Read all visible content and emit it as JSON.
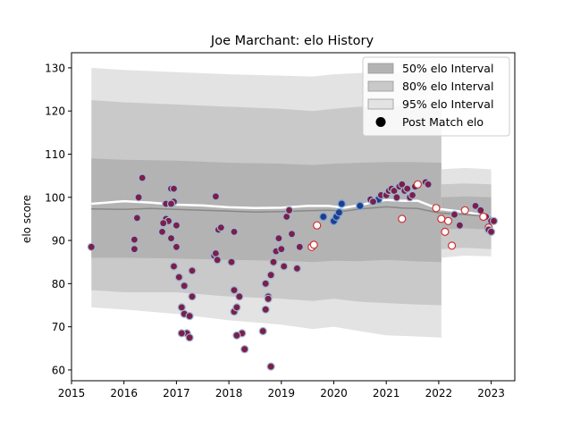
{
  "chart_data": {
    "type": "scatter",
    "title": "Joe Marchant: elo History",
    "xlabel": "",
    "ylabel": "elo score",
    "xlim": [
      2015.0,
      2023.45
    ],
    "ylim": [
      57.5,
      133.5
    ],
    "xticks": [
      2015,
      2016,
      2017,
      2018,
      2019,
      2020,
      2021,
      2022,
      2023
    ],
    "yticks": [
      60,
      70,
      80,
      90,
      100,
      110,
      120,
      130
    ],
    "legend": {
      "placement": "top-right",
      "entries": [
        {
          "label": "50% elo Interval",
          "color": "#b3b3b3"
        },
        {
          "label": "80% elo Interval",
          "color": "#c9c9c9"
        },
        {
          "label": "95% elo Interval",
          "color": "#e3e3e3"
        },
        {
          "label": "Post Match elo",
          "color": "#000000"
        }
      ]
    },
    "colors": {
      "band50": "#b3b3b3",
      "band80": "#c9c9c9",
      "band95": "#e3e3e3",
      "mean_line": "#888888",
      "median_line": "#ffffff",
      "point_red": "#7a2048",
      "point_red_edge": "#9fb6d6",
      "point_navy": "#1f3d8a",
      "point_navy_edge": "#6fa0d8",
      "point_open": "#ffffff",
      "point_open_edge": "#d03030"
    },
    "intervals": {
      "x": [
        2015.38,
        2016.0,
        2017.0,
        2018.0,
        2019.0,
        2019.6,
        2020.0,
        2020.5,
        2021.0,
        2021.5,
        2022.05
      ],
      "p95_hi": [
        130,
        129.5,
        129,
        128.5,
        128.2,
        128,
        128.5,
        128.8,
        129,
        129,
        129
      ],
      "p95_lo": [
        74.5,
        74,
        73,
        71.5,
        70.5,
        69.5,
        70,
        69,
        68,
        67.8,
        67.5
      ],
      "p80_hi": [
        122.5,
        122,
        121.5,
        121,
        120.5,
        120,
        120.5,
        121,
        121,
        121,
        121
      ],
      "p80_lo": [
        78.5,
        78,
        78,
        77,
        76.5,
        76,
        76.5,
        75.8,
        75.5,
        75.2,
        75
      ],
      "p50_hi": [
        109,
        108.7,
        108.5,
        108,
        107.8,
        107.5,
        107.8,
        108,
        108.2,
        108.2,
        108
      ],
      "p50_lo": [
        86,
        86,
        85.8,
        85.5,
        85.3,
        85,
        85.3,
        85.2,
        85.5,
        85.2,
        85
      ]
    },
    "tail_intervals": {
      "x": [
        2022.05,
        2022.5,
        2023.0
      ],
      "p95_hi": [
        106.5,
        106.8,
        106.5
      ],
      "p95_lo": [
        86,
        86.5,
        86.3
      ],
      "p80_hi": [
        103,
        103.2,
        103
      ],
      "p80_lo": [
        88,
        88.3,
        88
      ],
      "p50_hi": [
        100,
        100.2,
        100
      ],
      "p50_lo": [
        92.5,
        92.8,
        92.5
      ]
    },
    "mean_line": {
      "x": [
        2015.38,
        2016.0,
        2016.5,
        2017.0,
        2017.5,
        2018.0,
        2018.5,
        2019.0,
        2019.5,
        2019.9,
        2020.2,
        2020.5,
        2020.8,
        2021.0,
        2021.3,
        2021.6,
        2022.0,
        2022.5,
        2023.0
      ],
      "y": [
        97.3,
        97.2,
        97.4,
        97.2,
        97.0,
        96.8,
        96.6,
        96.7,
        96.9,
        97.0,
        96.8,
        97.3,
        97.6,
        97.8,
        97.5,
        97.4,
        96.4,
        96.0,
        95.6
      ]
    },
    "median_line": {
      "x": [
        2015.38,
        2016.0,
        2016.5,
        2017.0,
        2017.5,
        2018.0,
        2018.5,
        2019.0,
        2019.5,
        2019.9,
        2020.2,
        2020.5,
        2020.8,
        2021.0,
        2021.3,
        2021.6,
        2022.0,
        2022.5,
        2023.0
      ],
      "y": [
        98.5,
        99.1,
        98.8,
        98.3,
        98.1,
        97.7,
        97.5,
        97.6,
        98.0,
        98.0,
        97.6,
        98.2,
        99.0,
        99.4,
        99.2,
        99.2,
        97.3,
        96.6,
        95.6
      ]
    },
    "series": [
      {
        "style": "red",
        "x": [
          2015.38,
          2016.2,
          2016.2,
          2016.25,
          2016.28,
          2016.35,
          2016.73,
          2016.8,
          2016.85,
          2016.9,
          2016.95,
          2017.0,
          2017.05,
          2017.1,
          2017.15,
          2017.2,
          2017.25,
          2017.3,
          2016.75,
          2016.8,
          2016.9,
          2016.95,
          2017.0,
          2017.05,
          2017.1,
          2017.15,
          2017.25,
          2017.3,
          2016.9,
          2016.95,
          2017.72,
          2017.75,
          2017.78,
          2017.8,
          2017.85,
          2017.75,
          2018.05,
          2018.1,
          2018.1,
          2018.15,
          2018.2,
          2018.25,
          2018.3,
          2018.1,
          2018.15,
          2018.65,
          2018.7,
          2018.75,
          2018.8,
          2018.85,
          2018.9,
          2018.95,
          2019.0,
          2019.05,
          2019.1,
          2019.15,
          2019.2,
          2019.3,
          2019.35,
          2018.7,
          2018.75,
          2018.8
        ],
        "y": [
          88.5,
          88,
          90.2,
          95.2,
          100,
          104.5,
          92,
          95,
          94.5,
          102,
          99,
          88.5,
          81.5,
          74.5,
          73,
          68.5,
          67.5,
          77,
          94,
          98.5,
          90.5,
          84,
          93.5,
          81.5,
          68.5,
          79.5,
          72.5,
          83,
          98.5,
          102,
          86.5,
          87,
          85.5,
          92.5,
          93,
          100.2,
          85,
          78.5,
          73.5,
          74.5,
          77,
          68.5,
          64.8,
          92,
          68,
          69,
          74,
          77,
          82,
          85,
          87.5,
          90.5,
          88,
          84,
          95.5,
          97,
          91.5,
          83.5,
          88.5,
          80,
          76.5,
          60.8
        ]
      },
      {
        "style": "navy",
        "x": [
          2019.8,
          2020.0,
          2020.05,
          2020.1,
          2020.15,
          2020.5,
          2020.75,
          2020.85
        ],
        "y": [
          95.5,
          94.5,
          95.5,
          96.5,
          98.5,
          98,
          99,
          99.5
        ]
      },
      {
        "style": "red",
        "x": [
          2020.7,
          2020.75,
          2020.9,
          2021.0,
          2021.05,
          2021.1,
          2021.15,
          2021.2,
          2021.25,
          2021.3,
          2021.35,
          2021.4,
          2021.45,
          2021.5,
          2021.55,
          2021.75,
          2021.8,
          2022.7,
          2022.8,
          2022.9,
          2023.0
        ],
        "y": [
          99.5,
          99,
          100.5,
          100.5,
          101.5,
          102,
          101.5,
          100,
          102.5,
          103,
          101.5,
          102,
          100,
          100.5,
          102.5,
          103.5,
          103,
          98,
          97,
          95.5,
          94.5
        ]
      },
      {
        "style": "open",
        "x": [
          2019.58,
          2019.62,
          2019.68,
          2021.3,
          2021.6,
          2021.95,
          2022.05,
          2022.12,
          2022.18,
          2022.25,
          2022.5,
          2022.85,
          2022.95
        ],
        "y": [
          88.5,
          89,
          93.5,
          95,
          103,
          97.5,
          95,
          92,
          94.5,
          88.8,
          97,
          95.5,
          93
        ]
      },
      {
        "style": "red",
        "x": [
          2022.3,
          2022.4,
          2022.95,
          2023.0,
          2023.05
        ],
        "y": [
          96,
          93.5,
          92.5,
          92,
          94.5
        ]
      }
    ]
  }
}
